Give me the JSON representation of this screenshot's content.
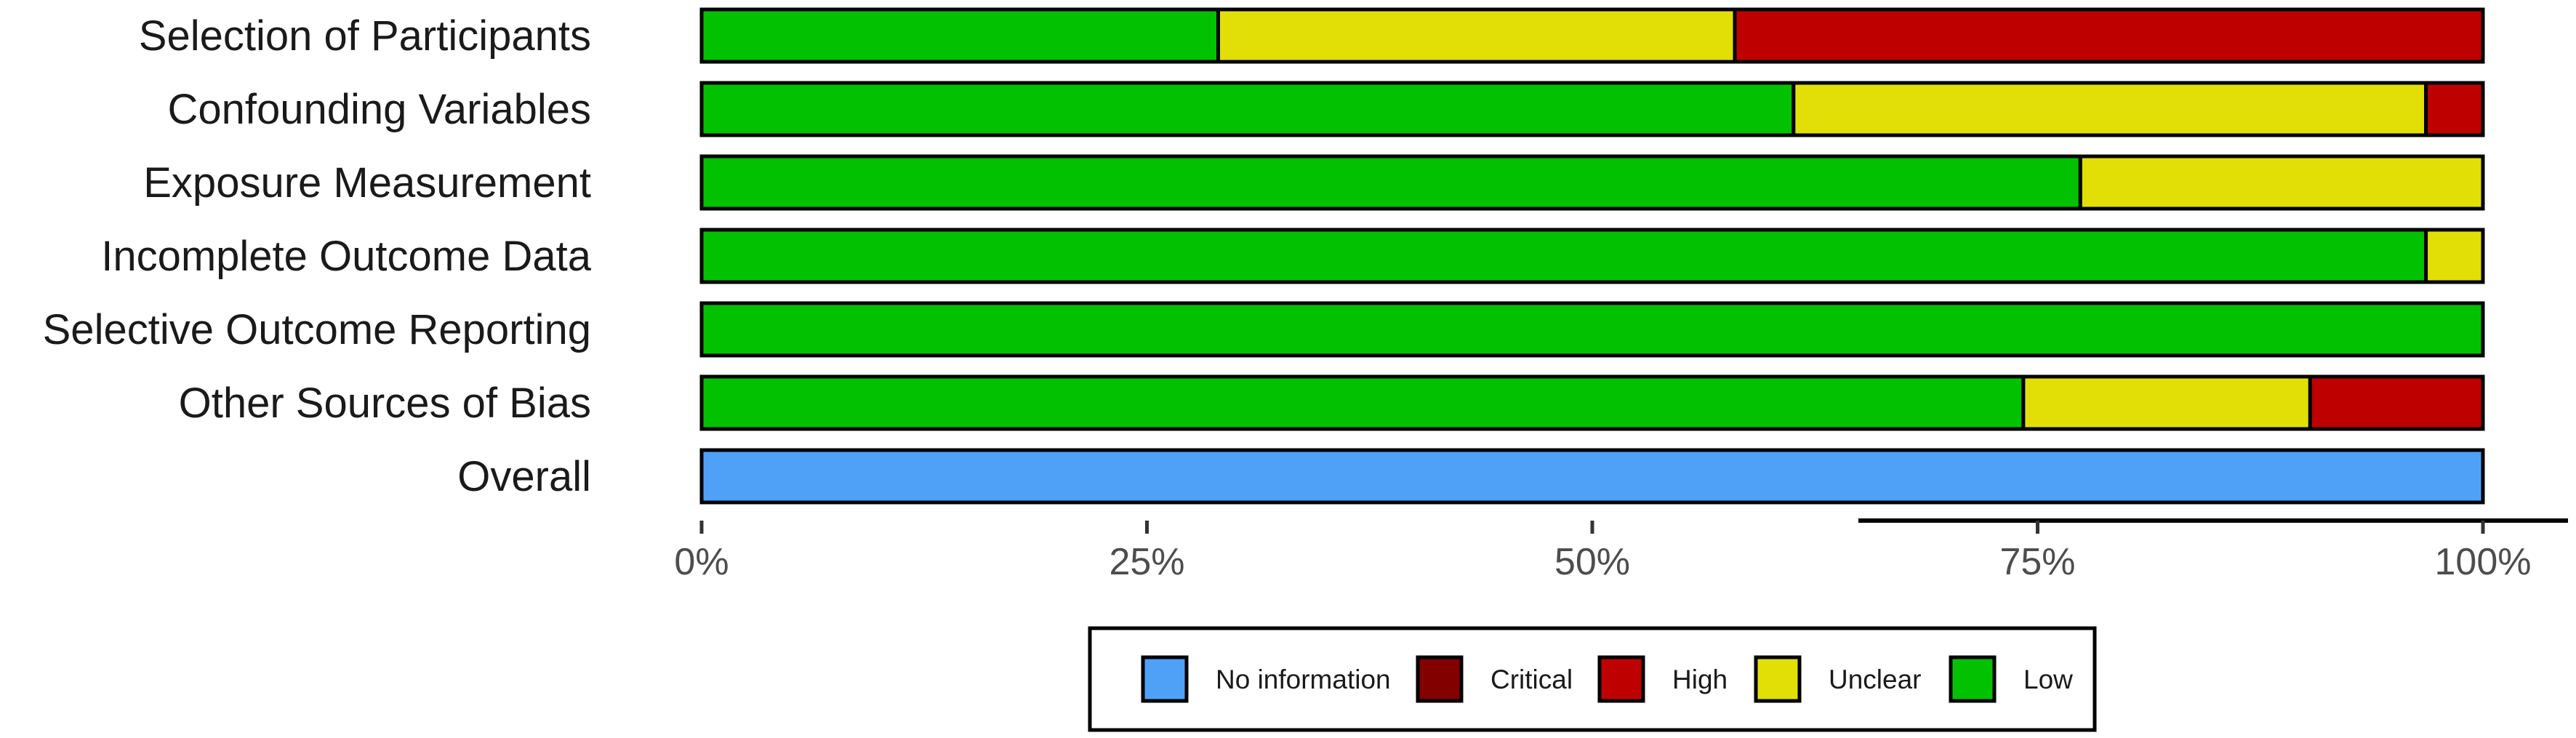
{
  "chart_data": {
    "type": "bar",
    "orientation": "horizontal",
    "stacked": true,
    "categories": [
      "Selection of Participants",
      "Confounding Variables",
      "Exposure Measurement",
      "Incomplete Outcome Data",
      "Selective Outcome Reporting",
      "Other Sources of Bias",
      "Overall"
    ],
    "series": [
      {
        "name": "Low",
        "color": "#02C100",
        "values": [
          29,
          61.3,
          77.4,
          96.8,
          100,
          74.2,
          0
        ]
      },
      {
        "name": "Unclear",
        "color": "#E2DF07",
        "values": [
          29,
          35.5,
          22.6,
          3.2,
          0,
          16.1,
          0
        ]
      },
      {
        "name": "High",
        "color": "#BF0000",
        "values": [
          42,
          3.2,
          0,
          0,
          0,
          9.7,
          0
        ]
      },
      {
        "name": "Critical",
        "color": "#820000",
        "values": [
          0,
          0,
          0,
          0,
          0,
          0,
          0
        ]
      },
      {
        "name": "No information",
        "color": "#4EA1F7",
        "values": [
          0,
          0,
          0,
          0,
          0,
          0,
          100
        ]
      }
    ],
    "x_ticks": [
      "0%",
      "25%",
      "50%",
      "75%",
      "100%"
    ],
    "xlim": [
      0,
      100
    ],
    "title": "",
    "xlabel": "",
    "ylabel": "",
    "grid": false,
    "legend": {
      "position": "bottom",
      "order": [
        "No information",
        "Critical",
        "High",
        "Unclear",
        "Low"
      ]
    }
  }
}
